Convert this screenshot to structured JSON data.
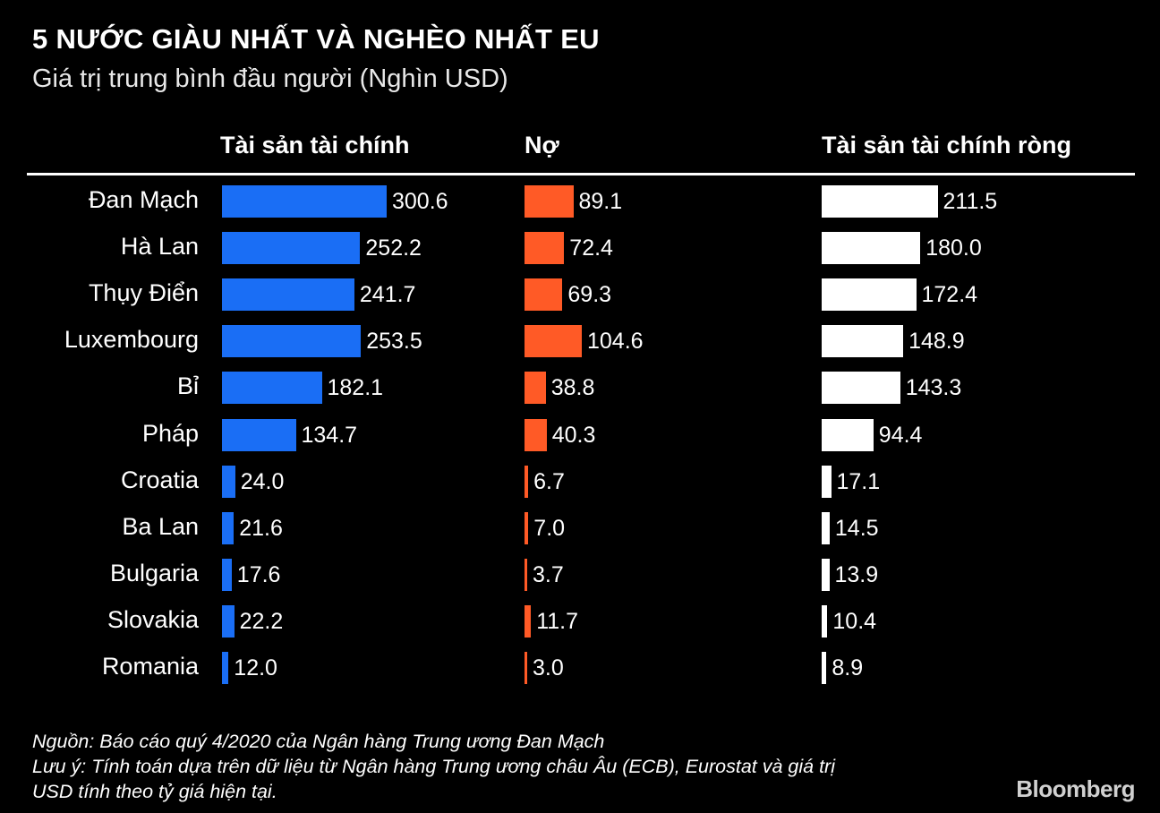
{
  "header": {
    "title": "5 NƯỚC GIÀU NHẤT VÀ NGHÈO NHẤT EU",
    "subtitle": "Giá trị trung bình đầu người (Nghìn USD)"
  },
  "chart_data": {
    "type": "bar",
    "orientation": "horizontal",
    "title": "5 NƯỚC GIÀU NHẤT VÀ NGHÈO NHẤT EU",
    "subtitle": "Giá trị trung bình đầu người (Nghìn USD)",
    "categories": [
      "Đan Mạch",
      "Hà Lan",
      "Thụy Điển",
      "Luxembourg",
      "Bỉ",
      "Pháp",
      "Croatia",
      "Ba Lan",
      "Bulgaria",
      "Slovakia",
      "Romania"
    ],
    "series": [
      {
        "name": "Tài sản tài chính",
        "color": "#1a6ef5",
        "values": [
          300.6,
          252.2,
          241.7,
          253.5,
          182.1,
          134.7,
          24.0,
          21.6,
          17.6,
          22.2,
          12.0
        ],
        "labels": [
          "300.6",
          "252.2",
          "241.7",
          "253.5",
          "182.1",
          "134.7",
          "24.0",
          "21.6",
          "17.6",
          "22.2",
          "12.0"
        ]
      },
      {
        "name": "Nợ",
        "color": "#ff5a26",
        "values": [
          89.1,
          72.4,
          69.3,
          104.6,
          38.8,
          40.3,
          6.7,
          7.0,
          3.7,
          11.7,
          3.0
        ],
        "labels": [
          "89.1",
          "72.4",
          "69.3",
          "104.6",
          "38.8",
          "40.3",
          "6.7",
          "7.0",
          "3.7",
          "11.7",
          "3.0"
        ]
      },
      {
        "name": "Tài sản tài chính ròng",
        "color": "#ffffff",
        "values": [
          211.5,
          180.0,
          172.4,
          148.9,
          143.3,
          94.4,
          17.1,
          14.5,
          13.9,
          10.4,
          8.9
        ],
        "labels": [
          "211.5",
          "180.0",
          "172.4",
          "148.9",
          "143.3",
          "94.4",
          "17.1",
          "14.5",
          "13.9",
          "10.4",
          "8.9"
        ]
      }
    ]
  },
  "footer": {
    "source": "Nguồn: Báo cáo quý 4/2020 của Ngân hàng Trung ương Đan Mạch",
    "note_line1": "Lưu ý: Tính toán dựa trên dữ liệu từ Ngân hàng Trung ương châu Âu (ECB), Eurostat và giá trị",
    "note_line2": "USD tính theo tỷ giá hiện tại.",
    "brand": "Bloomberg"
  }
}
